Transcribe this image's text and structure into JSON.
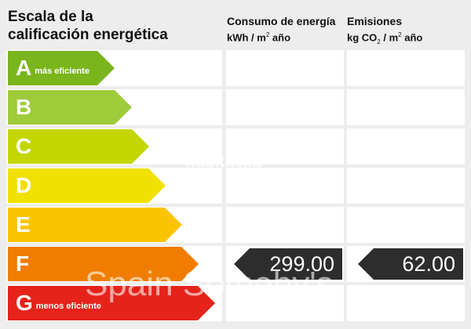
{
  "title": {
    "line1": "Escala de la",
    "line2": "calificación energética"
  },
  "columns": {
    "energy": {
      "label": "Consumo de energía",
      "unit_pre": "kWh / m",
      "unit_sup": "2",
      "unit_post": " año"
    },
    "emissions": {
      "label": "Emisiones",
      "unit_pre": "kg CO",
      "unit_sub": "2",
      "unit_mid": " / m",
      "unit_sup": "2",
      "unit_post": " año"
    }
  },
  "ratings": [
    {
      "letter": "A",
      "note": "más eficiente",
      "color": "#7ab51d"
    },
    {
      "letter": "B",
      "note": "",
      "color": "#9ecb3a"
    },
    {
      "letter": "C",
      "note": "",
      "color": "#c3d600"
    },
    {
      "letter": "D",
      "note": "",
      "color": "#f0e100"
    },
    {
      "letter": "E",
      "note": "",
      "color": "#fbc400"
    },
    {
      "letter": "F",
      "note": "",
      "color": "#f07d00"
    },
    {
      "letter": "G",
      "note": "menos eficiente",
      "color": "#e5231b"
    }
  ],
  "current_rating": "F",
  "energy_value": "299.00",
  "emissions_value": "62.00",
  "watermarks": {
    "site": "habitaclia",
    "agency": "Spain  Sotheby's"
  }
}
